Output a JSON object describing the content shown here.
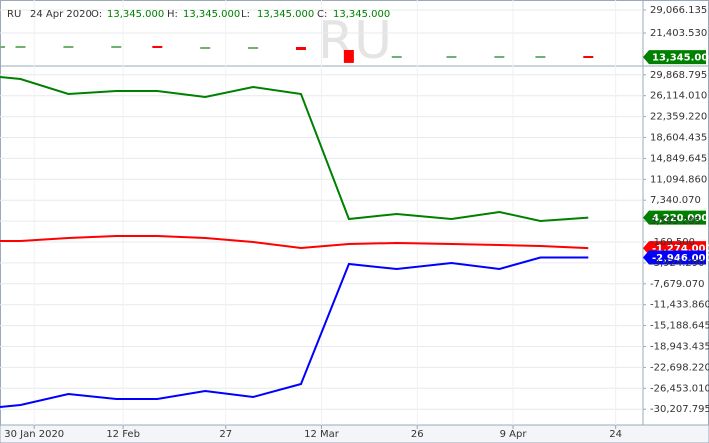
{
  "chart_data": [
    {
      "type": "price",
      "symbol": "RU",
      "date": "24 Apr 2020",
      "ohlc": [
        {
          "name": "O:",
          "value": 13345,
          "label": "13,345.000"
        },
        {
          "name": "H:",
          "value": 13345,
          "label": "13,345.000"
        },
        {
          "name": "L:",
          "value": 13345,
          "label": "13,345.000"
        },
        {
          "name": "C:",
          "value": 13345,
          "label": "13,345.000"
        }
      ],
      "x": [
        "2020-01-25",
        "2020-01-28",
        "2020-02-04",
        "2020-02-11",
        "2020-02-17",
        "2020-02-24",
        "2020-03-02",
        "2020-03-09",
        "2020-03-16",
        "2020-03-23",
        "2020-03-31",
        "2020-04-07",
        "2020-04-13",
        "2020-04-20"
      ],
      "values": [
        16740,
        16740,
        16740,
        16740,
        16400,
        16400,
        16400,
        15400,
        11100,
        13400,
        13400,
        13400,
        13400,
        13345
      ],
      "value_labels": [
        null,
        null,
        null,
        null,
        null,
        null,
        null,
        null,
        null,
        null,
        null,
        null,
        null,
        "13,345.000"
      ],
      "up_color": "#008000",
      "down_color": "#ff0000",
      "color": "#70b070",
      "xlim": [
        "2020-01-25",
        "2020-04-28"
      ],
      "ylim": [
        11070,
        31730
      ],
      "yticks": [
        {
          "value": 29066.135,
          "label": "29,066.135"
        },
        {
          "value": 21403.53,
          "label": "21,403.530"
        }
      ],
      "grid": true
    },
    {
      "type": "line",
      "x": [
        "2020-01-25",
        "2020-01-28",
        "2020-02-04",
        "2020-02-11",
        "2020-02-17",
        "2020-02-24",
        "2020-03-02",
        "2020-03-09",
        "2020-03-16",
        "2020-03-23",
        "2020-03-31",
        "2020-04-07",
        "2020-04-13",
        "2020-04-20"
      ],
      "series": [
        {
          "color": "#008000",
          "values": [
            29475,
            29115,
            26420,
            26959,
            26959,
            25881,
            27678,
            26420,
            3963,
            4861,
            3963,
            5220,
            3603,
            4220
          ],
          "value_labels": [
            null,
            null,
            null,
            null,
            null,
            null,
            null,
            null,
            null,
            null,
            null,
            null,
            null,
            "4,220.000"
          ]
        },
        {
          "color": "#ff0000",
          "values": [
            10,
            10,
            549,
            908,
            908,
            549,
            -170,
            -1247,
            -529,
            -349,
            -529,
            -709,
            -888,
            -1274
          ],
          "value_labels": [
            null,
            null,
            null,
            null,
            null,
            null,
            null,
            null,
            null,
            null,
            null,
            null,
            null,
            "-1,274.000"
          ]
        },
        {
          "color": "#0000ff",
          "values": [
            -29814,
            -29455,
            -27478,
            -28377,
            -28377,
            -26939,
            -28017,
            -25682,
            -4123,
            -5021,
            -3943,
            -5021,
            -2946,
            -2946
          ],
          "value_labels": [
            null,
            null,
            null,
            null,
            null,
            null,
            null,
            null,
            null,
            null,
            null,
            null,
            null,
            "-2,946.000"
          ]
        }
      ],
      "xlim": [
        "2020-01-25",
        "2020-04-28"
      ],
      "ylim": [
        -33047,
        31270
      ],
      "xticks": [
        {
          "value": "2020-01-30",
          "label": "30 Jan 2020"
        },
        {
          "value": "2020-02-12",
          "label": "12 Feb"
        },
        {
          "value": "2020-02-27",
          "label": "27"
        },
        {
          "value": "2020-03-12",
          "label": "12 Mar"
        },
        {
          "value": "2020-03-26",
          "label": "26"
        },
        {
          "value": "2020-04-09",
          "label": "9 Apr"
        },
        {
          "value": "2020-04-24",
          "label": "24"
        }
      ],
      "yticks": [
        {
          "value": 29868.795,
          "label": "29,868.795"
        },
        {
          "value": 26114.01,
          "label": "26,114.010"
        },
        {
          "value": 22359.22,
          "label": "22,359.220"
        },
        {
          "value": 18604.435,
          "label": "18,604.435"
        },
        {
          "value": 14849.645,
          "label": "14,849.645"
        },
        {
          "value": 11094.86,
          "label": "11,094.860"
        },
        {
          "value": 7340.07,
          "label": "7,340.070"
        },
        {
          "value": 3585.285,
          "label": "3,585.285"
        },
        {
          "value": -169.5,
          "label": "-169.500"
        },
        {
          "value": -3924.29,
          "label": "-3,924.290"
        },
        {
          "value": -7679.07,
          "label": "-7,679.070"
        },
        {
          "value": -11433.86,
          "label": "-11,433.860"
        },
        {
          "value": -15188.645,
          "label": "-15,188.645"
        },
        {
          "value": -18943.435,
          "label": "-18,943.435"
        },
        {
          "value": -22698.22,
          "label": "-22,698.220"
        },
        {
          "value": -26453.01,
          "label": "-26,453.010"
        },
        {
          "value": -30207.795,
          "label": "-30,207.795"
        }
      ],
      "grid": true
    }
  ]
}
